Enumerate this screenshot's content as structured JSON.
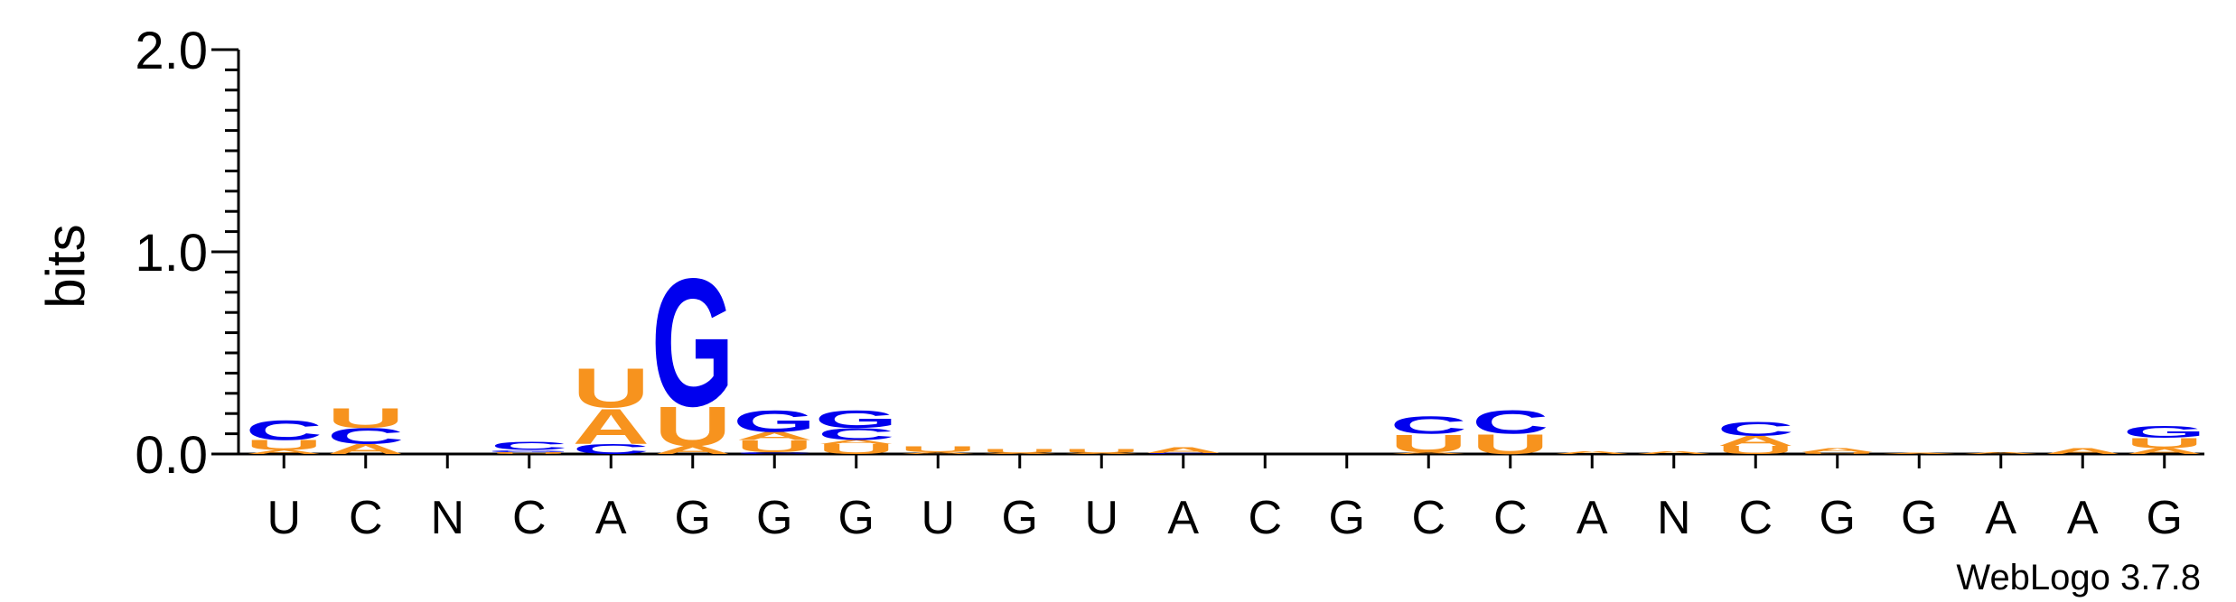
{
  "chart_data": {
    "type": "sequence-logo",
    "ylabel": "bits",
    "ylim": [
      0.0,
      2.0
    ],
    "yticks": [
      "0.0",
      "1.0",
      "2.0"
    ],
    "xlabels": [
      "U",
      "C",
      "N",
      "C",
      "A",
      "G",
      "G",
      "G",
      "U",
      "G",
      "U",
      "A",
      "C",
      "G",
      "C",
      "C",
      "A",
      "N",
      "C",
      "G",
      "G",
      "A",
      "A",
      "G"
    ],
    "colors": {
      "A": "#f7931e",
      "U": "#f7931e",
      "G": "#0000ee",
      "C": "#0000ee"
    },
    "columns": [
      [
        [
          "A",
          0.02
        ],
        [
          "U",
          0.05
        ],
        [
          "C",
          0.1
        ]
      ],
      [
        [
          "A",
          0.05
        ],
        [
          "C",
          0.08
        ],
        [
          "U",
          0.1
        ]
      ],
      [],
      [
        [
          "U",
          0.01
        ],
        [
          "G",
          0.01
        ],
        [
          "C",
          0.04
        ]
      ],
      [
        [
          "C",
          0.05
        ],
        [
          "A",
          0.18
        ],
        [
          "U",
          0.2
        ]
      ],
      [
        [
          "A",
          0.04
        ],
        [
          "U",
          0.2
        ],
        [
          "G",
          0.65
        ]
      ],
      [
        [
          "C",
          0.01
        ],
        [
          "U",
          0.06
        ],
        [
          "A",
          0.04
        ],
        [
          "G",
          0.11
        ]
      ],
      [
        [
          "U",
          0.05
        ],
        [
          "A",
          0.02
        ],
        [
          "C",
          0.06
        ],
        [
          "G",
          0.09
        ]
      ],
      [
        [
          "A",
          0.01
        ],
        [
          "U",
          0.03
        ]
      ],
      [
        [
          "A",
          0.005
        ],
        [
          "U",
          0.02
        ]
      ],
      [
        [
          "A",
          0.005
        ],
        [
          "U",
          0.02
        ]
      ],
      [
        [
          "C",
          0.005
        ],
        [
          "A",
          0.03
        ]
      ],
      [],
      [],
      [
        [
          "A",
          0.01
        ],
        [
          "U",
          0.09
        ],
        [
          "C",
          0.09
        ]
      ],
      [
        [
          "U",
          0.1
        ],
        [
          "C",
          0.12
        ]
      ],
      [
        [
          "A",
          0.015
        ]
      ],
      [
        [
          "A",
          0.015
        ]
      ],
      [
        [
          "U",
          0.04
        ],
        [
          "A",
          0.05
        ],
        [
          "C",
          0.07
        ]
      ],
      [
        [
          "U",
          0.01
        ],
        [
          "A",
          0.02
        ]
      ],
      [
        [
          "A",
          0.005
        ]
      ],
      [
        [
          "A",
          0.01
        ]
      ],
      [
        [
          "A",
          0.03
        ]
      ],
      [
        [
          "A",
          0.03
        ],
        [
          "U",
          0.05
        ],
        [
          "G",
          0.06
        ]
      ]
    ]
  },
  "footer": {
    "credit": "WebLogo 3.7.8"
  }
}
